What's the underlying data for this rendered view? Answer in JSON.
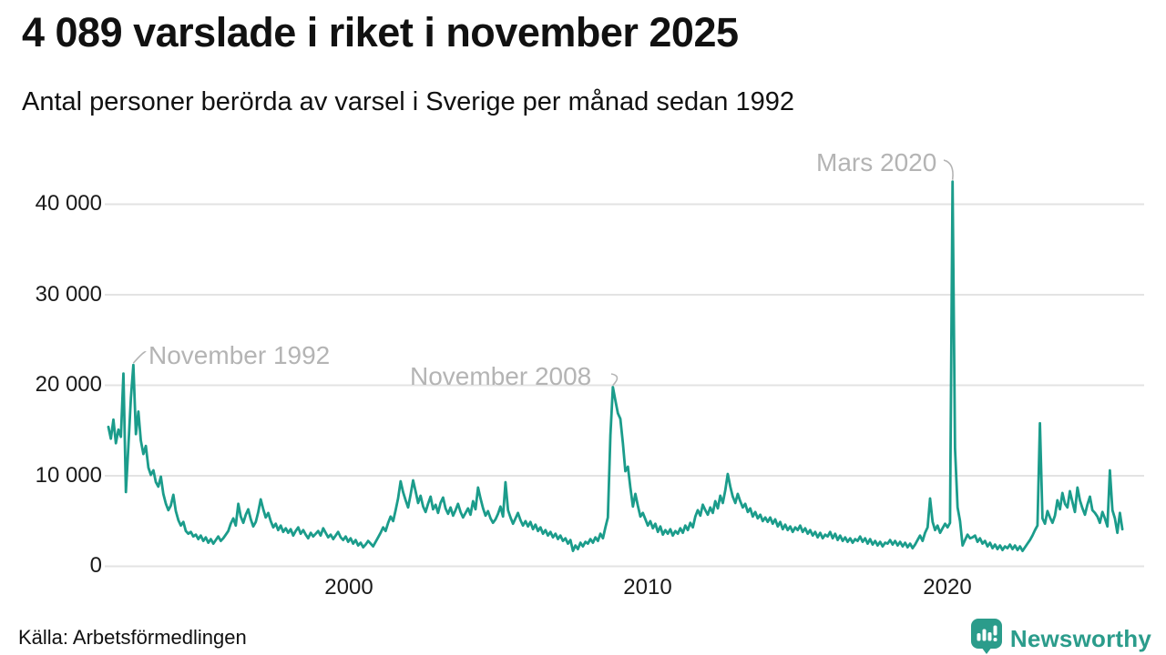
{
  "header": {
    "title": "4 089 varslade i riket i november 2025",
    "subtitle": "Antal personer berörda av varsel i Sverige per månad sedan 1992"
  },
  "footer": {
    "source": "Källa: Arbetsförmedlingen",
    "brand": "Newsworthy"
  },
  "colors": {
    "line": "#1b9c8b",
    "grid": "#e3e3e3",
    "annotation": "#b4b4b4",
    "brand": "#2b9c8b",
    "text": "#1a1a1a"
  },
  "chart_data": {
    "type": "line",
    "title": "4 089 varslade i riket i november 2025",
    "subtitle": "Antal personer berörda av varsel i Sverige per månad sedan 1992",
    "x_start": "1992-01",
    "x_end": "2025-11",
    "frequency": "monthly",
    "ylim": [
      0,
      45000
    ],
    "grid": "horizontal",
    "legend": "none",
    "yticks": [
      0,
      10000,
      20000,
      30000,
      40000
    ],
    "ytick_labels": [
      "0",
      "10 000",
      "20 000",
      "30 000",
      "40 000"
    ],
    "xtick_labels": [
      "2000",
      "2010",
      "2020"
    ],
    "xtick_years": [
      2000,
      2010,
      2020
    ],
    "annotations": [
      {
        "label": "November 1992",
        "month": "1992-11",
        "value": 22250
      },
      {
        "label": "November 2008",
        "month": "2008-11",
        "value": 19800
      },
      {
        "label": "Mars 2020",
        "month": "2020-03",
        "value": 42500
      }
    ],
    "series": [
      {
        "name": "Antal personer berörda av varsel",
        "values": [
          15400,
          14100,
          16200,
          13600,
          15100,
          14300,
          21300,
          8200,
          13200,
          18600,
          22250,
          14600,
          17100,
          13900,
          12400,
          13300,
          10900,
          10100,
          10600,
          9300,
          8800,
          9900,
          8000,
          6900,
          6200,
          6700,
          7900,
          6100,
          5100,
          4500,
          4900,
          3900,
          3600,
          3800,
          3300,
          3500,
          3000,
          3400,
          2800,
          3200,
          2600,
          3000,
          2500,
          2900,
          3300,
          2800,
          3100,
          3500,
          3900,
          4700,
          5300,
          4500,
          6900,
          5500,
          4800,
          5700,
          6300,
          5200,
          4400,
          4900,
          6000,
          7400,
          6300,
          5400,
          5900,
          5000,
          4300,
          4700,
          4000,
          4500,
          3800,
          4200,
          3700,
          4100,
          3400,
          3900,
          4300,
          3600,
          4000,
          3500,
          3100,
          3700,
          3300,
          3600,
          3900,
          3400,
          4200,
          3700,
          3200,
          3500,
          3000,
          3400,
          3800,
          3200,
          2900,
          3300,
          2700,
          3100,
          2500,
          2900,
          2300,
          2600,
          2100,
          2400,
          2800,
          2500,
          2200,
          2700,
          3200,
          3700,
          4300,
          3900,
          4800,
          5500,
          5000,
          6200,
          7500,
          9400,
          8200,
          7300,
          6500,
          7900,
          9500,
          8300,
          7000,
          7800,
          6600,
          6000,
          6900,
          7700,
          6300,
          6800,
          5900,
          7000,
          7600,
          6400,
          5800,
          6500,
          5600,
          6200,
          6900,
          6000,
          5400,
          5900,
          6400,
          5700,
          7200,
          6300,
          8700,
          7500,
          6400,
          5600,
          6100,
          5300,
          4800,
          5200,
          5800,
          6600,
          5500,
          9300,
          6200,
          5400,
          4700,
          5300,
          5900,
          5100,
          4500,
          5000,
          4400,
          4900,
          4100,
          4600,
          3900,
          4300,
          3600,
          4000,
          3400,
          3800,
          3200,
          3600,
          3000,
          3400,
          2800,
          3100,
          2500,
          2900,
          1700,
          2300,
          1900,
          2600,
          2200,
          2700,
          2500,
          3000,
          2600,
          3200,
          2800,
          3600,
          3100,
          4300,
          5400,
          14500,
          19800,
          18300,
          16900,
          16300,
          13600,
          10500,
          11000,
          8700,
          6600,
          8000,
          6700,
          5500,
          5900,
          5200,
          4500,
          5000,
          4200,
          4700,
          3800,
          4400,
          3500,
          4000,
          3600,
          4100,
          3400,
          3900,
          3600,
          4200,
          3700,
          4500,
          4000,
          4800,
          4300,
          5500,
          6200,
          5600,
          6800,
          6200,
          5700,
          6500,
          5900,
          7200,
          6400,
          7800,
          7000,
          8400,
          10200,
          8800,
          7700,
          7000,
          8000,
          7200,
          6500,
          6900,
          6000,
          6400,
          5500,
          6000,
          5300,
          5700,
          5000,
          5400,
          4900,
          5400,
          4700,
          5200,
          4400,
          4900,
          4100,
          4600,
          4000,
          4400,
          3800,
          4300,
          4000,
          4500,
          3800,
          4200,
          3600,
          4000,
          3400,
          3800,
          3200,
          3700,
          3100,
          3500,
          3300,
          3800,
          3100,
          3600,
          2900,
          3400,
          2800,
          3200,
          2700,
          3100,
          2600,
          3000,
          2800,
          3300,
          2700,
          3100,
          2500,
          3000,
          2400,
          2800,
          2300,
          2700,
          2200,
          2600,
          2500,
          2900,
          2400,
          2800,
          2300,
          2700,
          2200,
          2600,
          2100,
          2500,
          2000,
          2400,
          2900,
          3400,
          2800,
          3700,
          4300,
          7500,
          4900,
          4000,
          4500,
          3700,
          4200,
          4700,
          4300,
          4800,
          42500,
          13000,
          6500,
          5000,
          2300,
          2900,
          3500,
          3100,
          3200,
          3400,
          2700,
          3100,
          2500,
          2800,
          2200,
          2600,
          2000,
          2400,
          1900,
          2300,
          1800,
          2200,
          2000,
          2400,
          1900,
          2300,
          1800,
          2200,
          1700,
          2100,
          2500,
          2900,
          3400,
          4000,
          4500,
          15800,
          5300,
          4700,
          6100,
          5400,
          4800,
          5600,
          7300,
          6300,
          8100,
          6900,
          6500,
          8300,
          7100,
          6000,
          8700,
          7300,
          6400,
          5700,
          6800,
          7700,
          6200,
          5900,
          5500,
          4800,
          6000,
          5300,
          4400,
          10600,
          6200,
          5300,
          3700,
          5900,
          4089
        ]
      }
    ]
  }
}
